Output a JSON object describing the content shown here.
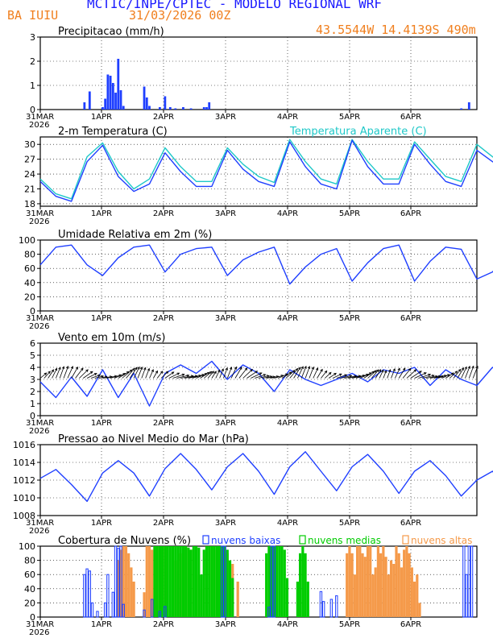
{
  "header": {
    "title": "MCTIC/INPE/CPTEC  -  MODELO REGIONAL WRF",
    "station": "BA IUIU",
    "run": "31/03/2026 00Z",
    "location": "43.5544W 14.4139S 490m"
  },
  "colors": {
    "title": "#1a1aff",
    "orange": "#f07f1e",
    "precip": "#1f3fff",
    "temp": "#1f3fff",
    "apparent": "#1fc8c8",
    "low_cloud": "#1f3fff",
    "mid_cloud": "#00cc00",
    "high_cloud": "#f59a4a"
  },
  "x_axis": {
    "tick_labels": [
      "31MAR",
      "1APR",
      "2APR",
      "3APR",
      "4APR",
      "5APR",
      "6APR"
    ],
    "year": "2026"
  },
  "chart_data": [
    {
      "type": "bar",
      "id": "precip",
      "title": "Precipitacao (mm/h)",
      "ylim": [
        0,
        3
      ],
      "yticks": [
        0,
        1,
        2,
        3
      ],
      "hours": [
        17,
        19,
        24,
        25,
        26,
        27,
        28,
        29,
        30,
        31,
        32,
        40,
        41,
        42,
        46,
        48,
        50,
        52,
        55,
        58,
        63,
        64,
        65,
        162,
        165
      ],
      "values": [
        0.3,
        0.75,
        0.1,
        0.45,
        1.45,
        1.4,
        1.1,
        0.7,
        2.1,
        0.8,
        0.15,
        0.95,
        0.5,
        0.15,
        0.1,
        0.55,
        0.1,
        0.05,
        0.1,
        0.05,
        0.1,
        0.1,
        0.3,
        0.05,
        0.3
      ]
    },
    {
      "type": "line",
      "id": "temperature",
      "title": "2-m Temperatura (C)",
      "legend": "Temperatura Aparente (C)",
      "ylim": [
        17.5,
        31.5
      ],
      "yticks": [
        18,
        21,
        24,
        27,
        30
      ],
      "series": [
        {
          "name": "2-m Temperatura",
          "hour_step": 6,
          "values": [
            22.5,
            19.5,
            18.5,
            26.5,
            29.8,
            23.5,
            20.5,
            22.0,
            28.3,
            24.5,
            21.5,
            21.5,
            28.8,
            25.0,
            22.5,
            21.5,
            30.5,
            25.5,
            22.0,
            21.0,
            30.8,
            25.5,
            22.0,
            22.0,
            30.0,
            26.0,
            22.5,
            21.5,
            28.8,
            26.5,
            24.5
          ]
        },
        {
          "name": "Temperatura Aparente",
          "hour_step": 6,
          "values": [
            23.0,
            20.0,
            19.0,
            27.5,
            30.3,
            24.5,
            21.0,
            23.0,
            29.3,
            25.5,
            22.5,
            22.5,
            29.3,
            26.0,
            23.5,
            22.3,
            31.0,
            26.5,
            23.0,
            22.0,
            31.0,
            26.5,
            23.0,
            23.0,
            30.5,
            27.0,
            23.5,
            22.5,
            30.0,
            27.5,
            25.5
          ]
        }
      ]
    },
    {
      "type": "line",
      "id": "humidity",
      "title": "Umidade Relativa em 2m (%)",
      "ylim": [
        0,
        100
      ],
      "yticks": [
        0,
        20,
        40,
        60,
        80,
        100
      ],
      "hour_step": 6,
      "values": [
        65,
        90,
        93,
        65,
        50,
        75,
        90,
        93,
        55,
        80,
        88,
        90,
        50,
        72,
        83,
        90,
        38,
        62,
        80,
        88,
        42,
        68,
        88,
        93,
        42,
        70,
        90,
        87,
        45,
        55,
        80
      ]
    },
    {
      "type": "line",
      "id": "wind",
      "title": "Vento em 10m (m/s)",
      "ylim": [
        0,
        6
      ],
      "yticks": [
        0,
        1,
        2,
        3,
        4,
        5,
        6
      ],
      "hour_step": 6,
      "values": [
        2.8,
        1.5,
        3.2,
        1.6,
        3.8,
        1.5,
        3.5,
        0.8,
        3.5,
        4.2,
        3.5,
        4.5,
        3.0,
        4.2,
        3.5,
        2.0,
        3.8,
        3.0,
        2.5,
        3.0,
        3.5,
        2.8,
        3.8,
        3.5,
        4.0,
        2.5,
        3.8,
        3.0,
        2.5,
        4.0,
        3.0
      ]
    },
    {
      "type": "line",
      "id": "pressure",
      "title": "Pressao ao Nivel Medio do Mar (hPa)",
      "ylim": [
        1008,
        1016
      ],
      "yticks": [
        1008,
        1010,
        1012,
        1014,
        1016
      ],
      "hour_step": 6,
      "values": [
        1012.2,
        1013.2,
        1011.5,
        1009.6,
        1012.8,
        1014.2,
        1012.8,
        1010.2,
        1013.3,
        1015.0,
        1013.2,
        1010.9,
        1013.5,
        1015.0,
        1013.0,
        1010.4,
        1013.5,
        1015.2,
        1013.0,
        1010.8,
        1013.5,
        1014.9,
        1013.0,
        1010.5,
        1013.0,
        1014.2,
        1012.5,
        1010.2,
        1012.0,
        1013.0,
        1010.8
      ]
    },
    {
      "type": "bar",
      "id": "clouds",
      "title": "Cobertura de Nuvens (%)",
      "ylim": [
        0,
        100
      ],
      "yticks": [
        0,
        20,
        40,
        60,
        80,
        100
      ],
      "series": [
        {
          "name": "nuvens baixas",
          "hours": [
            17,
            18,
            19,
            20,
            22,
            25,
            26,
            28,
            29,
            30,
            31,
            32,
            40,
            43,
            46,
            48,
            70,
            71,
            88,
            89,
            90,
            108,
            109,
            112,
            114,
            163,
            164,
            165,
            166
          ],
          "values": [
            60,
            68,
            65,
            20,
            8,
            20,
            60,
            35,
            100,
            97,
            100,
            18,
            10,
            25,
            8,
            15,
            100,
            100,
            14,
            100,
            100,
            36,
            22,
            25,
            30,
            100,
            60,
            100,
            100
          ]
        },
        {
          "name": "nuvens medias",
          "hours": [
            44,
            45,
            46,
            47,
            48,
            49,
            50,
            51,
            52,
            53,
            54,
            55,
            56,
            57,
            58,
            59,
            60,
            61,
            62,
            63,
            64,
            65,
            66,
            67,
            68,
            69,
            70,
            71,
            72,
            73,
            74,
            87,
            88,
            89,
            90,
            91,
            92,
            93,
            94,
            95,
            99,
            100,
            101,
            102,
            103
          ],
          "values": [
            100,
            100,
            100,
            100,
            100,
            100,
            100,
            100,
            100,
            100,
            100,
            100,
            100,
            98,
            95,
            100,
            100,
            98,
            60,
            95,
            100,
            100,
            100,
            100,
            100,
            100,
            100,
            100,
            95,
            80,
            55,
            90,
            100,
            100,
            100,
            100,
            100,
            100,
            95,
            55,
            50,
            90,
            100,
            90,
            50
          ]
        },
        {
          "name": "nuvens altas",
          "hours": [
            30,
            31,
            32,
            33,
            34,
            35,
            36,
            40,
            41,
            42,
            43,
            44,
            45,
            46,
            47,
            48,
            52,
            53,
            54,
            56,
            58,
            60,
            62,
            64,
            66,
            68,
            70,
            72,
            74,
            76,
            118,
            119,
            120,
            121,
            122,
            123,
            124,
            125,
            126,
            127,
            128,
            129,
            130,
            131,
            132,
            133,
            134,
            135,
            136,
            137,
            138,
            139,
            140,
            141,
            142,
            143,
            144,
            145,
            146
          ],
          "values": [
            80,
            95,
            100,
            100,
            90,
            70,
            50,
            35,
            100,
            100,
            95,
            100,
            100,
            100,
            100,
            100,
            80,
            65,
            90,
            100,
            95,
            60,
            40,
            100,
            100,
            95,
            85,
            90,
            75,
            50,
            90,
            100,
            90,
            60,
            100,
            100,
            90,
            85,
            100,
            100,
            60,
            70,
            100,
            90,
            100,
            85,
            60,
            80,
            75,
            100,
            90,
            70,
            95,
            100,
            90,
            70,
            50,
            60,
            20
          ]
        }
      ]
    }
  ]
}
